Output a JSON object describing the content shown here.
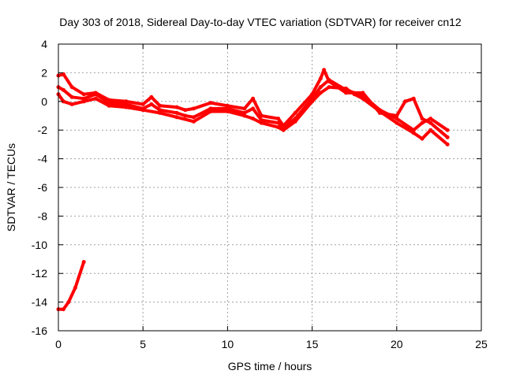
{
  "chart_data": {
    "type": "line",
    "title": "Day 303 of 2018, Sidereal Day-to-day VTEC variation (SDTVAR) for receiver cn12",
    "xlabel": "GPS time / hours",
    "ylabel": "SDTVAR / TECUs",
    "xlim": [
      0,
      25
    ],
    "ylim": [
      -16,
      4
    ],
    "xticks": [
      0,
      5,
      10,
      15,
      20,
      25
    ],
    "yticks": [
      4,
      2,
      0,
      -2,
      -4,
      -6,
      -8,
      -10,
      -12,
      -14,
      -16
    ],
    "grid": true,
    "series": [
      {
        "name": "track-a",
        "color": "#ff0000",
        "x": [
          0,
          0.3,
          0.8,
          1.5,
          2.2,
          3,
          4,
          5,
          5.5,
          6,
          7,
          7.5,
          8,
          9,
          10,
          11,
          11.5,
          12,
          13,
          13.3,
          14,
          15,
          15.5,
          15.7,
          16,
          17,
          18,
          19,
          20,
          20.5,
          21,
          21.5,
          22,
          23
        ],
        "y": [
          1.8,
          1.9,
          1.0,
          0.5,
          0.6,
          0.1,
          0.0,
          -0.2,
          0.3,
          -0.3,
          -0.4,
          -0.6,
          -0.5,
          -0.1,
          -0.3,
          -0.5,
          0.2,
          -1.0,
          -1.2,
          -1.7,
          -0.8,
          0.5,
          1.6,
          2.2,
          1.4,
          0.6,
          0.6,
          -0.8,
          -1.0,
          0.0,
          0.2,
          -1.2,
          -1.5,
          -2.5
        ]
      },
      {
        "name": "track-b",
        "color": "#ff0000",
        "x": [
          0,
          0.3,
          0.8,
          1.5,
          2.2,
          3,
          4,
          5,
          5.5,
          6,
          7,
          7.5,
          8,
          9,
          10,
          11,
          11.5,
          12,
          13,
          13.3,
          14,
          15,
          15.5,
          16,
          17,
          18,
          19,
          20,
          21,
          21.5,
          22,
          23
        ],
        "y": [
          1.0,
          0.8,
          0.3,
          0.2,
          0.5,
          -0.1,
          -0.2,
          -0.5,
          -0.2,
          -0.6,
          -0.8,
          -1.0,
          -1.1,
          -0.5,
          -0.5,
          -0.8,
          -0.5,
          -1.3,
          -1.5,
          -1.8,
          -1.2,
          0.2,
          1.0,
          1.5,
          0.8,
          0.4,
          -0.6,
          -1.2,
          -2.0,
          -1.5,
          -1.2,
          -2.0
        ]
      },
      {
        "name": "track-c",
        "color": "#ff0000",
        "x": [
          0,
          0.3,
          0.8,
          1.5,
          2.2,
          3,
          4,
          5,
          6,
          7,
          8,
          9,
          10,
          11,
          11.5,
          12,
          13,
          13.3,
          14,
          15,
          15.5,
          16,
          17,
          17.5,
          18,
          19,
          20,
          21,
          21.5,
          22,
          23
        ],
        "y": [
          0.5,
          0.0,
          -0.2,
          0.0,
          0.2,
          -0.3,
          -0.4,
          -0.6,
          -0.8,
          -1.1,
          -1.4,
          -0.7,
          -0.7,
          -1.0,
          -1.2,
          -1.5,
          -1.8,
          -2.0,
          -1.4,
          0.0,
          0.6,
          1.0,
          0.9,
          0.5,
          0.2,
          -0.7,
          -1.5,
          -2.2,
          -2.6,
          -2.0,
          -3.0
        ]
      },
      {
        "name": "track-d",
        "color": "#ff0000",
        "x": [
          0,
          0.3,
          0.6,
          1.0,
          1.5
        ],
        "y": [
          -14.5,
          -14.5,
          -14.0,
          -13.0,
          -11.2
        ]
      }
    ]
  }
}
